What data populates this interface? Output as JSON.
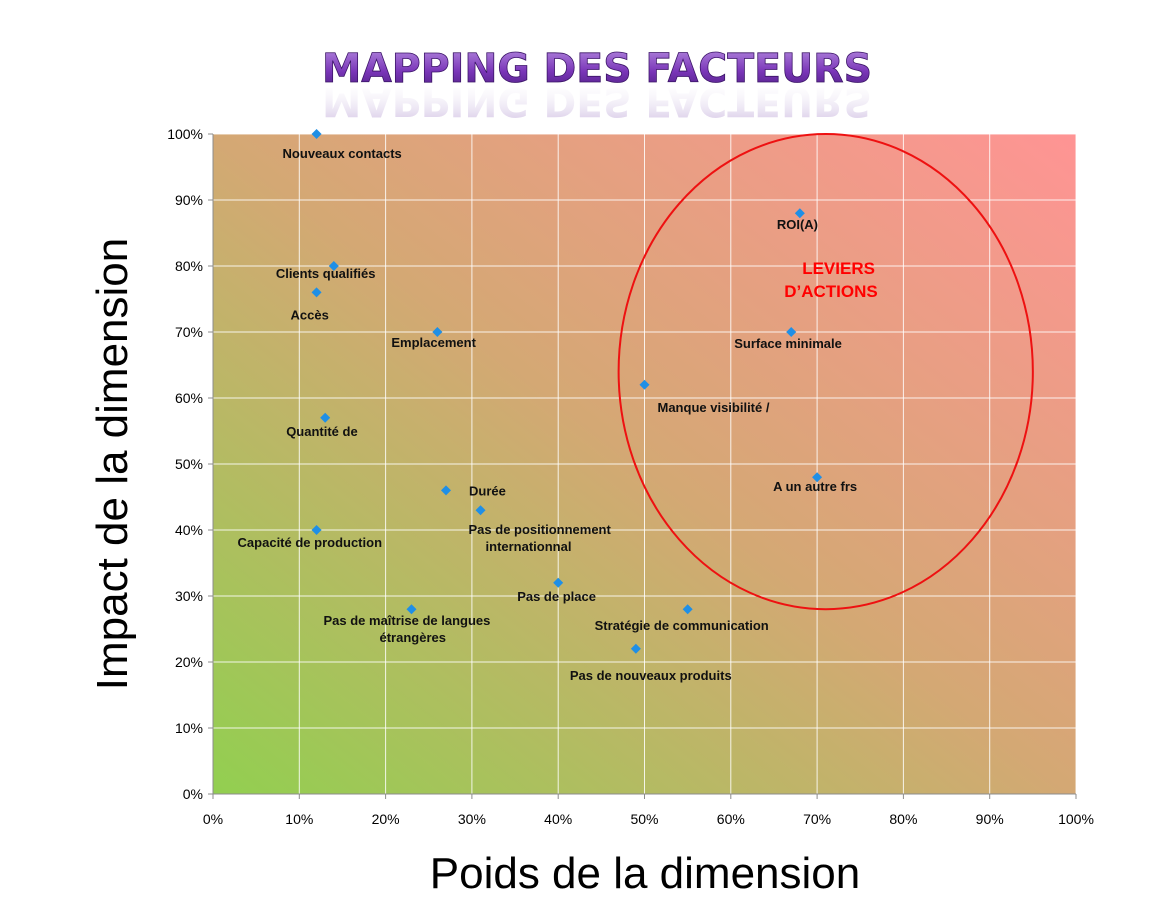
{
  "chart_data": {
    "type": "scatter",
    "title": "MAPPING DES FACTEURS",
    "xlabel": "Poids de la dimension",
    "ylabel": "Impact de la dimension",
    "xlim": [
      0,
      100
    ],
    "ylim": [
      0,
      100
    ],
    "x_ticks": [
      "0%",
      "10%",
      "20%",
      "30%",
      "40%",
      "50%",
      "60%",
      "70%",
      "80%",
      "90%",
      "100%"
    ],
    "y_ticks": [
      "0%",
      "10%",
      "20%",
      "30%",
      "40%",
      "50%",
      "60%",
      "70%",
      "80%",
      "90%",
      "100%"
    ],
    "grid": true,
    "marker_color": "#1f8fe6",
    "points": [
      {
        "x": 12,
        "y": 100,
        "label": "Nouveaux contacts"
      },
      {
        "x": 14,
        "y": 80,
        "label": "Clients qualifiés"
      },
      {
        "x": 12,
        "y": 76,
        "label": "Accès"
      },
      {
        "x": 26,
        "y": 70,
        "label": "Emplacement"
      },
      {
        "x": 13,
        "y": 57,
        "label": "Quantité de"
      },
      {
        "x": 27,
        "y": 46,
        "label": "Durée"
      },
      {
        "x": 31,
        "y": 43,
        "label": "Pas de positionnement internationnal"
      },
      {
        "x": 12,
        "y": 40,
        "label": "Capacité de production"
      },
      {
        "x": 40,
        "y": 32,
        "label": "Pas de place"
      },
      {
        "x": 23,
        "y": 28,
        "label": "Pas de maîtrise de langues étrangères"
      },
      {
        "x": 55,
        "y": 28,
        "label": "Stratégie de communication"
      },
      {
        "x": 49,
        "y": 22,
        "label": "Pas de nouveaux produits"
      },
      {
        "x": 50,
        "y": 62,
        "label": "Manque visibilité /"
      },
      {
        "x": 67,
        "y": 70,
        "label": "Surface minimale"
      },
      {
        "x": 68,
        "y": 88,
        "label": "ROI(A)"
      },
      {
        "x": 70,
        "y": 48,
        "label": "A un autre frs"
      }
    ],
    "annotation": {
      "text": [
        "LEVIERS",
        "D’ACTIONS"
      ],
      "color": "#ff0000",
      "x": 67,
      "y": 78
    },
    "highlight_zone": {
      "cx": 71,
      "cy": 64,
      "rx": 24,
      "ry": 36,
      "color": "#ee1111"
    },
    "background_gradient": {
      "from": "#92cf50",
      "via": "#d4a874",
      "to": "#ff9494"
    }
  }
}
